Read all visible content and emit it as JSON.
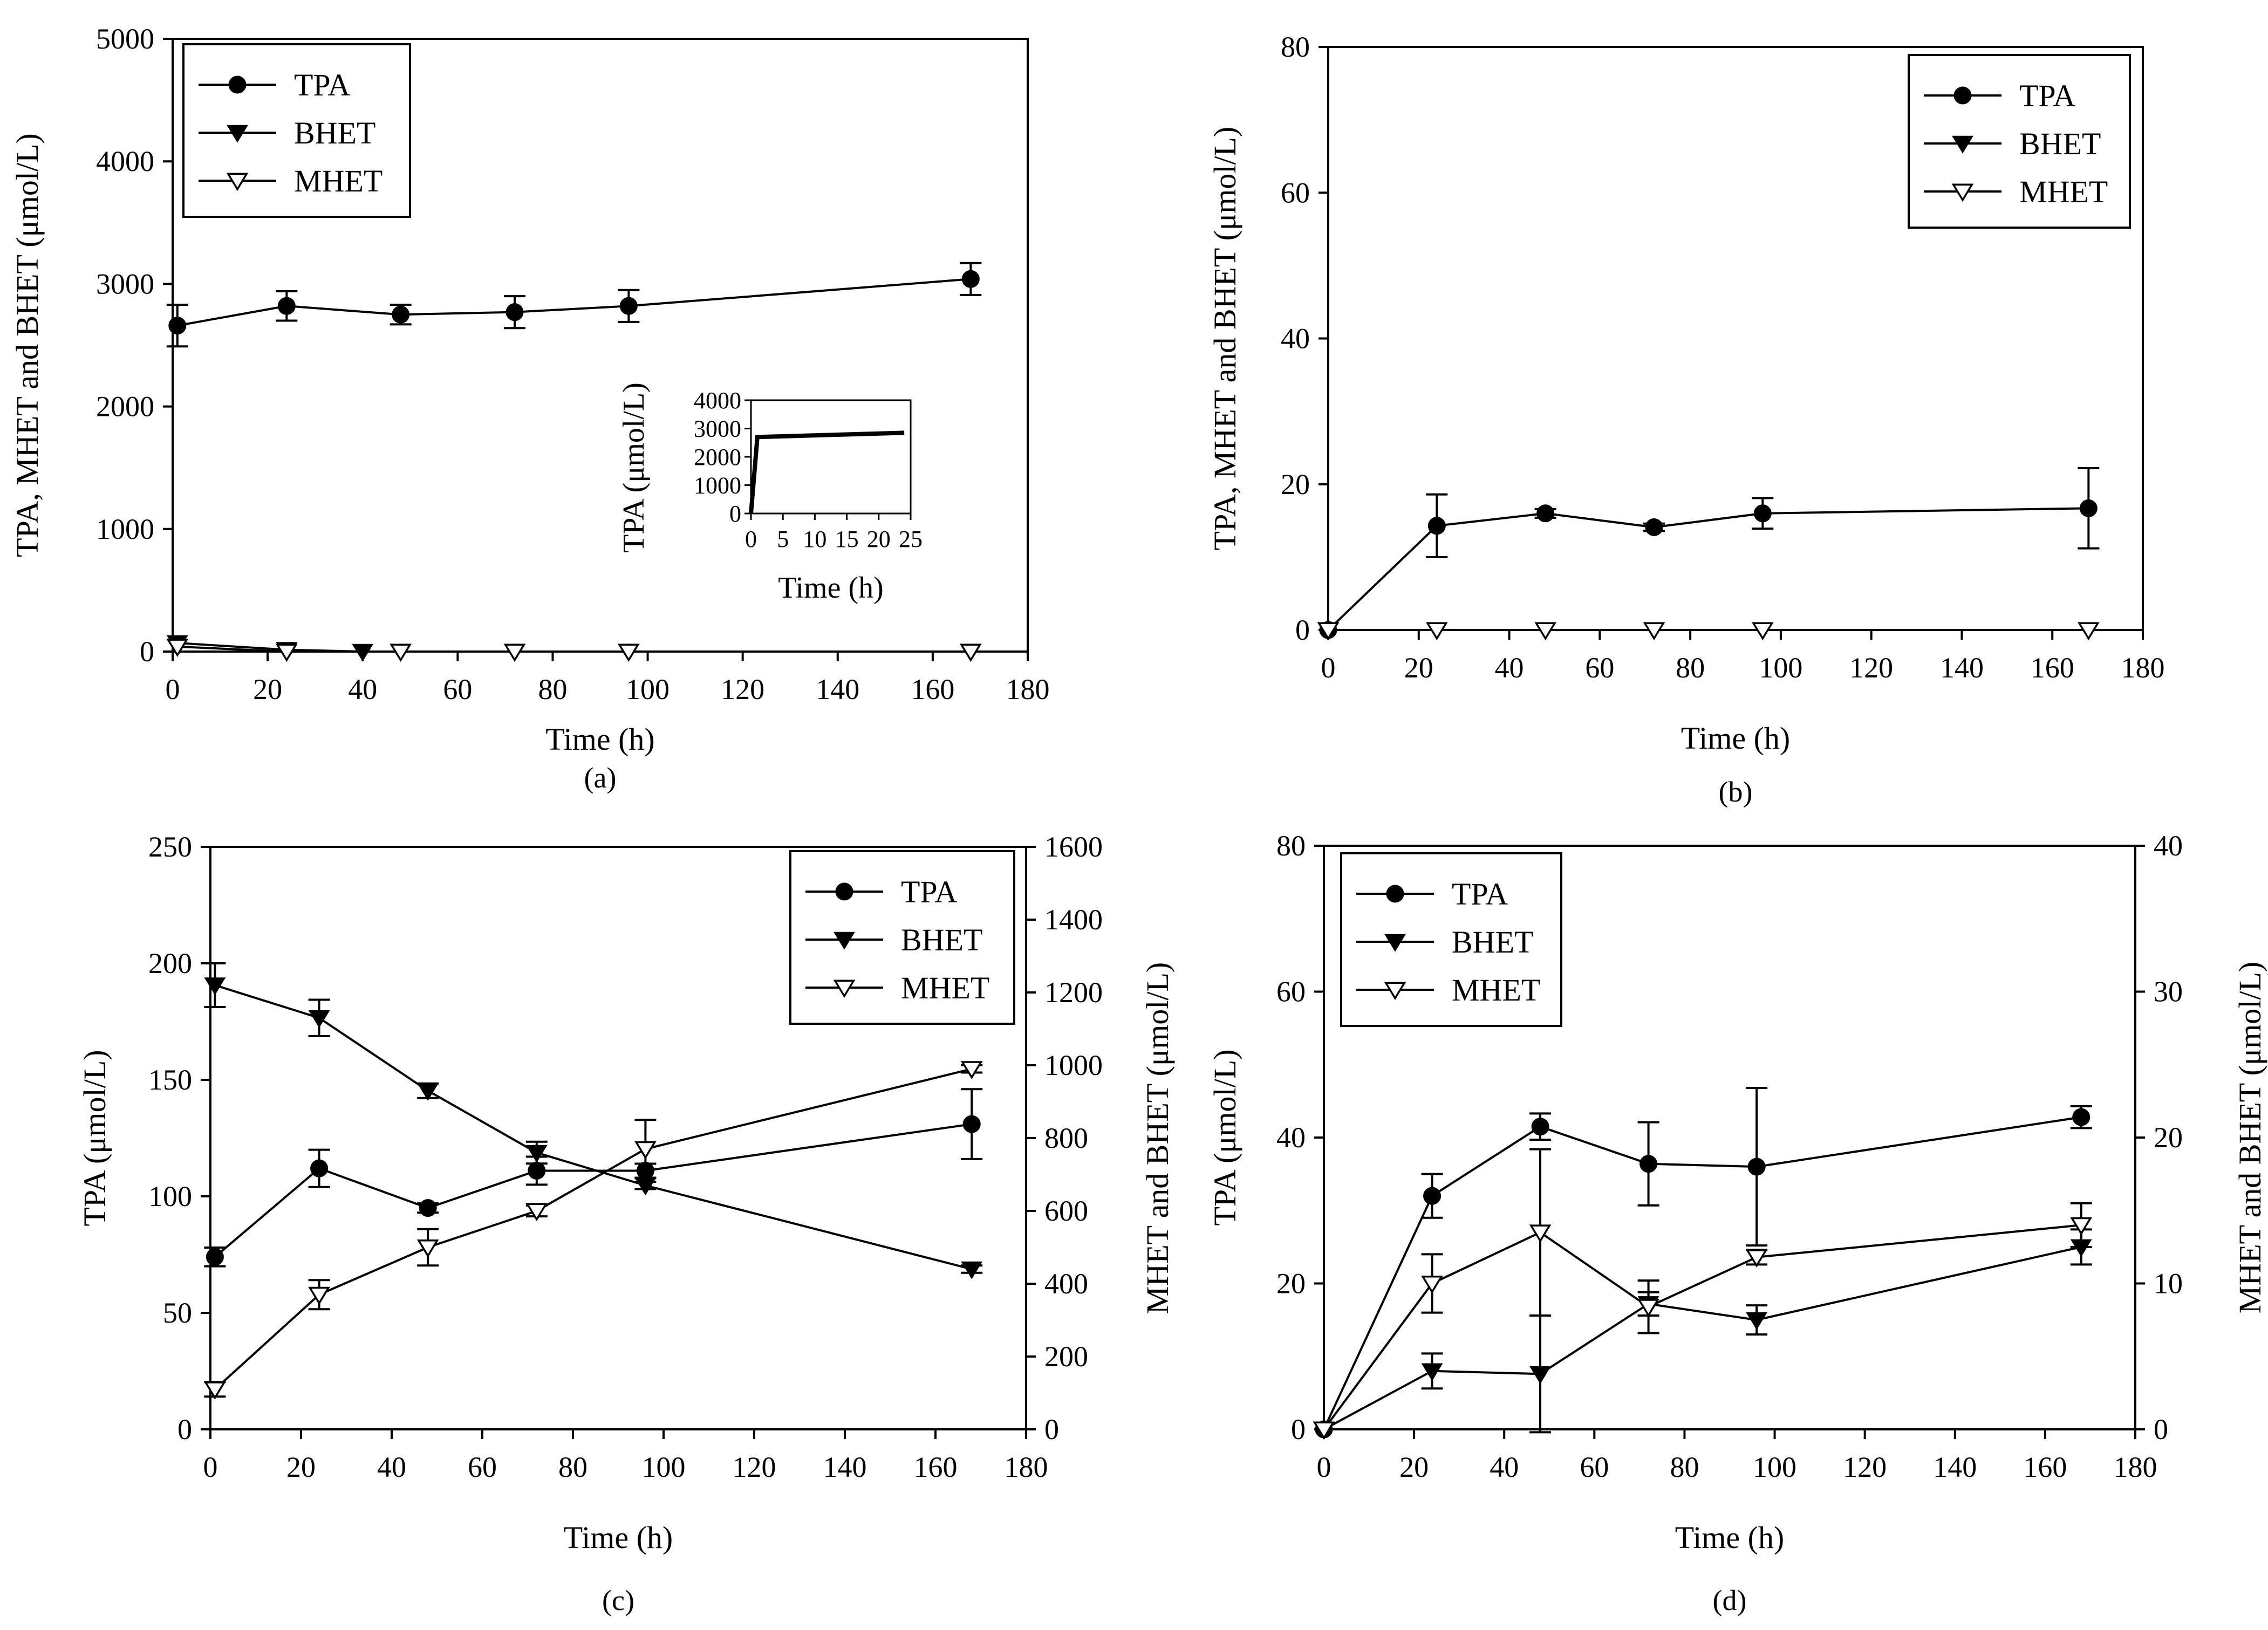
{
  "chart_data": [
    {
      "panel": "(a)",
      "type": "line",
      "xlabel": "Time (h)",
      "ylabel": "TPA, MHET and BHET (μmol/L)",
      "xlim": [
        0,
        180
      ],
      "ylim": [
        0,
        5000
      ],
      "xticks": [
        0,
        20,
        40,
        60,
        80,
        100,
        120,
        140,
        160,
        180
      ],
      "yticks": [
        0,
        1000,
        2000,
        3000,
        4000,
        5000
      ],
      "legend_position": "top-left",
      "series": [
        {
          "name": "TPA",
          "marker": "circle-filled",
          "axis": "left",
          "x": [
            1,
            24,
            48,
            72,
            96,
            168
          ],
          "y": [
            2660,
            2820,
            2750,
            2770,
            2820,
            3040
          ],
          "err": [
            170,
            120,
            80,
            130,
            130,
            130
          ]
        },
        {
          "name": "BHET",
          "marker": "triangle-down-filled",
          "axis": "left",
          "x": [
            1,
            24,
            40
          ],
          "y": [
            70,
            15,
            0
          ],
          "err": [
            0,
            0,
            0
          ]
        },
        {
          "name": "MHET",
          "marker": "triangle-down-open",
          "axis": "left",
          "x": [
            1,
            24,
            48,
            72,
            96,
            168
          ],
          "y": [
            40,
            0,
            0,
            0,
            0,
            0
          ],
          "err": [
            0,
            0,
            0,
            0,
            0,
            0
          ]
        }
      ],
      "inset": {
        "xlabel": "Time (h)",
        "ylabel": "TPA (μmol/L)",
        "xlim": [
          0,
          25
        ],
        "ylim": [
          0,
          4000
        ],
        "xticks": [
          0,
          5,
          10,
          15,
          20,
          25
        ],
        "yticks": [
          0,
          1000,
          2000,
          3000,
          4000
        ],
        "x": [
          0,
          1,
          24
        ],
        "y": [
          0,
          2700,
          2850
        ]
      }
    },
    {
      "panel": "(b)",
      "type": "line",
      "xlabel": "Time (h)",
      "ylabel": "TPA, MHET and BHET (μmol/L)",
      "xlim": [
        0,
        180
      ],
      "ylim": [
        0,
        80
      ],
      "xticks": [
        0,
        20,
        40,
        60,
        80,
        100,
        120,
        140,
        160,
        180
      ],
      "yticks": [
        0,
        20,
        40,
        60,
        80
      ],
      "legend_position": "top-right",
      "series": [
        {
          "name": "TPA",
          "marker": "circle-filled",
          "axis": "left",
          "x": [
            0,
            24,
            48,
            72,
            96,
            168
          ],
          "y": [
            0,
            14.3,
            16,
            14.1,
            16,
            16.7
          ],
          "err": [
            0,
            4.3,
            0.6,
            0.5,
            2.1,
            5.5
          ]
        },
        {
          "name": "BHET",
          "marker": "triangle-down-filled",
          "axis": "left",
          "x": [
            0
          ],
          "y": [
            0
          ],
          "err": [
            0
          ]
        },
        {
          "name": "MHET",
          "marker": "triangle-down-open",
          "axis": "left",
          "x": [
            0,
            24,
            48,
            72,
            96,
            168
          ],
          "y": [
            0,
            0,
            0,
            0,
            0,
            0
          ],
          "err": [
            0,
            0,
            0,
            0,
            0,
            0
          ]
        }
      ]
    },
    {
      "panel": "(c)",
      "type": "line",
      "xlabel": "Time (h)",
      "ylabel": "TPA (μmol/L)",
      "y2label": "MHET and BHET (μmol/L)",
      "xlim": [
        0,
        180
      ],
      "ylim": [
        0,
        250
      ],
      "y2lim": [
        0,
        1600
      ],
      "xticks": [
        0,
        20,
        40,
        60,
        80,
        100,
        120,
        140,
        160,
        180
      ],
      "yticks": [
        0,
        50,
        100,
        150,
        200,
        250
      ],
      "y2ticks": [
        0,
        200,
        400,
        600,
        800,
        1000,
        1200,
        1400,
        1600
      ],
      "legend_position": "top-right",
      "series": [
        {
          "name": "TPA",
          "marker": "circle-filled",
          "axis": "left",
          "x": [
            1,
            24,
            48,
            72,
            96,
            168
          ],
          "y": [
            74,
            112,
            95,
            111,
            111,
            131
          ],
          "err": [
            4,
            8,
            2,
            6,
            3,
            15
          ]
        },
        {
          "name": "BHET",
          "marker": "triangle-down-filled",
          "axis": "right",
          "x": [
            1,
            24,
            48,
            72,
            96,
            168
          ],
          "y": [
            1220,
            1130,
            930,
            760,
            670,
            440
          ],
          "err": [
            60,
            50,
            20,
            30,
            10,
            10
          ]
        },
        {
          "name": "MHET",
          "marker": "triangle-down-open",
          "axis": "right",
          "x": [
            1,
            24,
            48,
            72,
            96,
            168
          ],
          "y": [
            110,
            370,
            500,
            600,
            770,
            990
          ],
          "err": [
            20,
            40,
            50,
            15,
            80,
            10
          ]
        }
      ]
    },
    {
      "panel": "(d)",
      "type": "line",
      "xlabel": "Time (h)",
      "ylabel": "TPA (μmol/L)",
      "y2label": "MHET and BHET (μmol/L)",
      "xlim": [
        0,
        180
      ],
      "ylim": [
        0,
        80
      ],
      "y2lim": [
        0,
        40
      ],
      "xticks": [
        0,
        20,
        40,
        60,
        80,
        100,
        120,
        140,
        160,
        180
      ],
      "yticks": [
        0,
        20,
        40,
        60,
        80
      ],
      "y2ticks": [
        0,
        10,
        20,
        30,
        40
      ],
      "legend_position": "top-left",
      "series": [
        {
          "name": "TPA",
          "marker": "circle-filled",
          "axis": "left",
          "x": [
            0,
            24,
            48,
            72,
            96,
            168
          ],
          "y": [
            0,
            32,
            41.5,
            36.4,
            36,
            42.8
          ],
          "err": [
            0,
            3,
            1.8,
            5.7,
            10.8,
            1.5
          ]
        },
        {
          "name": "BHET",
          "marker": "triangle-down-filled",
          "axis": "right",
          "x": [
            0,
            24,
            48,
            72,
            96,
            168
          ],
          "y": [
            0,
            4,
            3.8,
            8.6,
            7.5,
            12.5
          ],
          "err": [
            0,
            1.2,
            4,
            0.8,
            1,
            1.2
          ]
        },
        {
          "name": "MHET",
          "marker": "triangle-down-open",
          "axis": "right",
          "x": [
            0,
            24,
            48,
            72,
            96,
            168
          ],
          "y": [
            0,
            10,
            13.5,
            8.4,
            11.8,
            14
          ],
          "err": [
            0,
            2,
            5.7,
            1.8,
            0.5,
            1.5
          ]
        }
      ]
    }
  ]
}
